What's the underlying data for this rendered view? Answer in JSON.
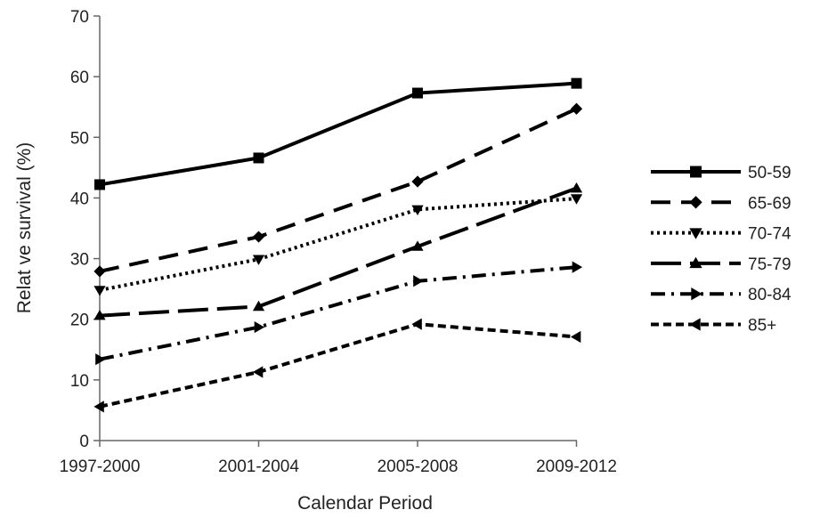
{
  "chart_data": {
    "type": "line",
    "title": "",
    "xlabel": "Calendar Period",
    "ylabel": "Relat ve survival (%)",
    "ylim": [
      0,
      70
    ],
    "yticks": [
      0,
      10,
      20,
      30,
      40,
      50,
      60,
      70
    ],
    "categories": [
      "1997-2000",
      "2001-2004",
      "2005-2008",
      "2009-2012"
    ],
    "grid": false,
    "legend_position": "right",
    "series": [
      {
        "name": "50-59",
        "values": [
          42.2,
          46.6,
          57.3,
          58.9
        ],
        "marker": "square",
        "dash": "solid"
      },
      {
        "name": "65-69",
        "values": [
          27.9,
          33.6,
          42.7,
          54.7
        ],
        "marker": "diamond",
        "dash": "dash"
      },
      {
        "name": "70-74",
        "values": [
          24.8,
          29.9,
          38.1,
          39.9
        ],
        "marker": "triangle-down",
        "dash": "dot"
      },
      {
        "name": "75-79",
        "values": [
          20.6,
          22.1,
          32.0,
          41.6
        ],
        "marker": "triangle-up",
        "dash": "longdash"
      },
      {
        "name": "80-84",
        "values": [
          13.4,
          18.7,
          26.3,
          28.6
        ],
        "marker": "triangle-right",
        "dash": "dashdot"
      },
      {
        "name": "85+",
        "values": [
          5.6,
          11.3,
          19.2,
          17.1
        ],
        "marker": "triangle-left",
        "dash": "shortdash"
      }
    ]
  }
}
